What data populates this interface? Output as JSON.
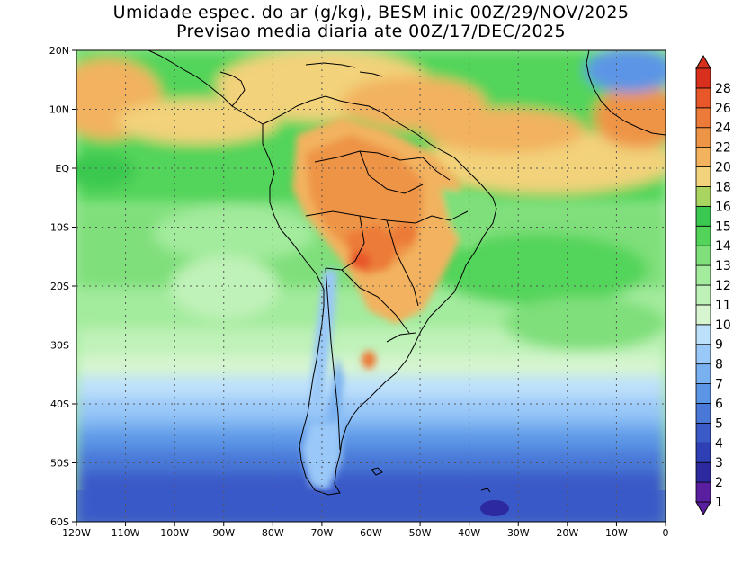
{
  "title": {
    "line1": "Umidade espec. do ar (g/kg), BESM inic 00Z/29/NOV/2025",
    "line2": "Previsao media diaria ate 00Z/17/DEC/2025"
  },
  "map": {
    "lat_labels": [
      "20N",
      "10N",
      "EQ",
      "10S",
      "20S",
      "30S",
      "40S",
      "50S",
      "60S"
    ],
    "lat_values": [
      20,
      10,
      0,
      -10,
      -20,
      -30,
      -40,
      -50,
      -60
    ],
    "lon_labels": [
      "120W",
      "110W",
      "100W",
      "90W",
      "80W",
      "70W",
      "60W",
      "50W",
      "40W",
      "30W",
      "20W",
      "10W",
      "0"
    ],
    "lon_values": [
      -120,
      -110,
      -100,
      -90,
      -80,
      -70,
      -60,
      -50,
      -40,
      -30,
      -20,
      -10,
      0
    ],
    "extent": {
      "lon_min": -120,
      "lon_max": 0,
      "lat_min": -60,
      "lat_max": 20
    },
    "grid": true
  },
  "colorbar": {
    "labels": [
      "1",
      "2",
      "3",
      "4",
      "5",
      "6",
      "7",
      "8",
      "9",
      "10",
      "11",
      "12",
      "13",
      "14",
      "15",
      "16",
      "18",
      "20",
      "22",
      "24",
      "26",
      "28"
    ],
    "colors": [
      "#5a1fa0",
      "#2c2a9e",
      "#2f3fb5",
      "#3a5ac8",
      "#4a78d8",
      "#5b95e6",
      "#78b0f0",
      "#9ac8f8",
      "#bde0fb",
      "#d6f5d0",
      "#bff2b8",
      "#a3eb9d",
      "#7fdf7a",
      "#52d45a",
      "#3ac850",
      "#a9d460",
      "#f2d27a",
      "#f2b25e",
      "#ee9446",
      "#ec7a38",
      "#e8572a",
      "#d8301c"
    ],
    "below_color": "#5a1fa0",
    "above_color": "#d8301c"
  }
}
